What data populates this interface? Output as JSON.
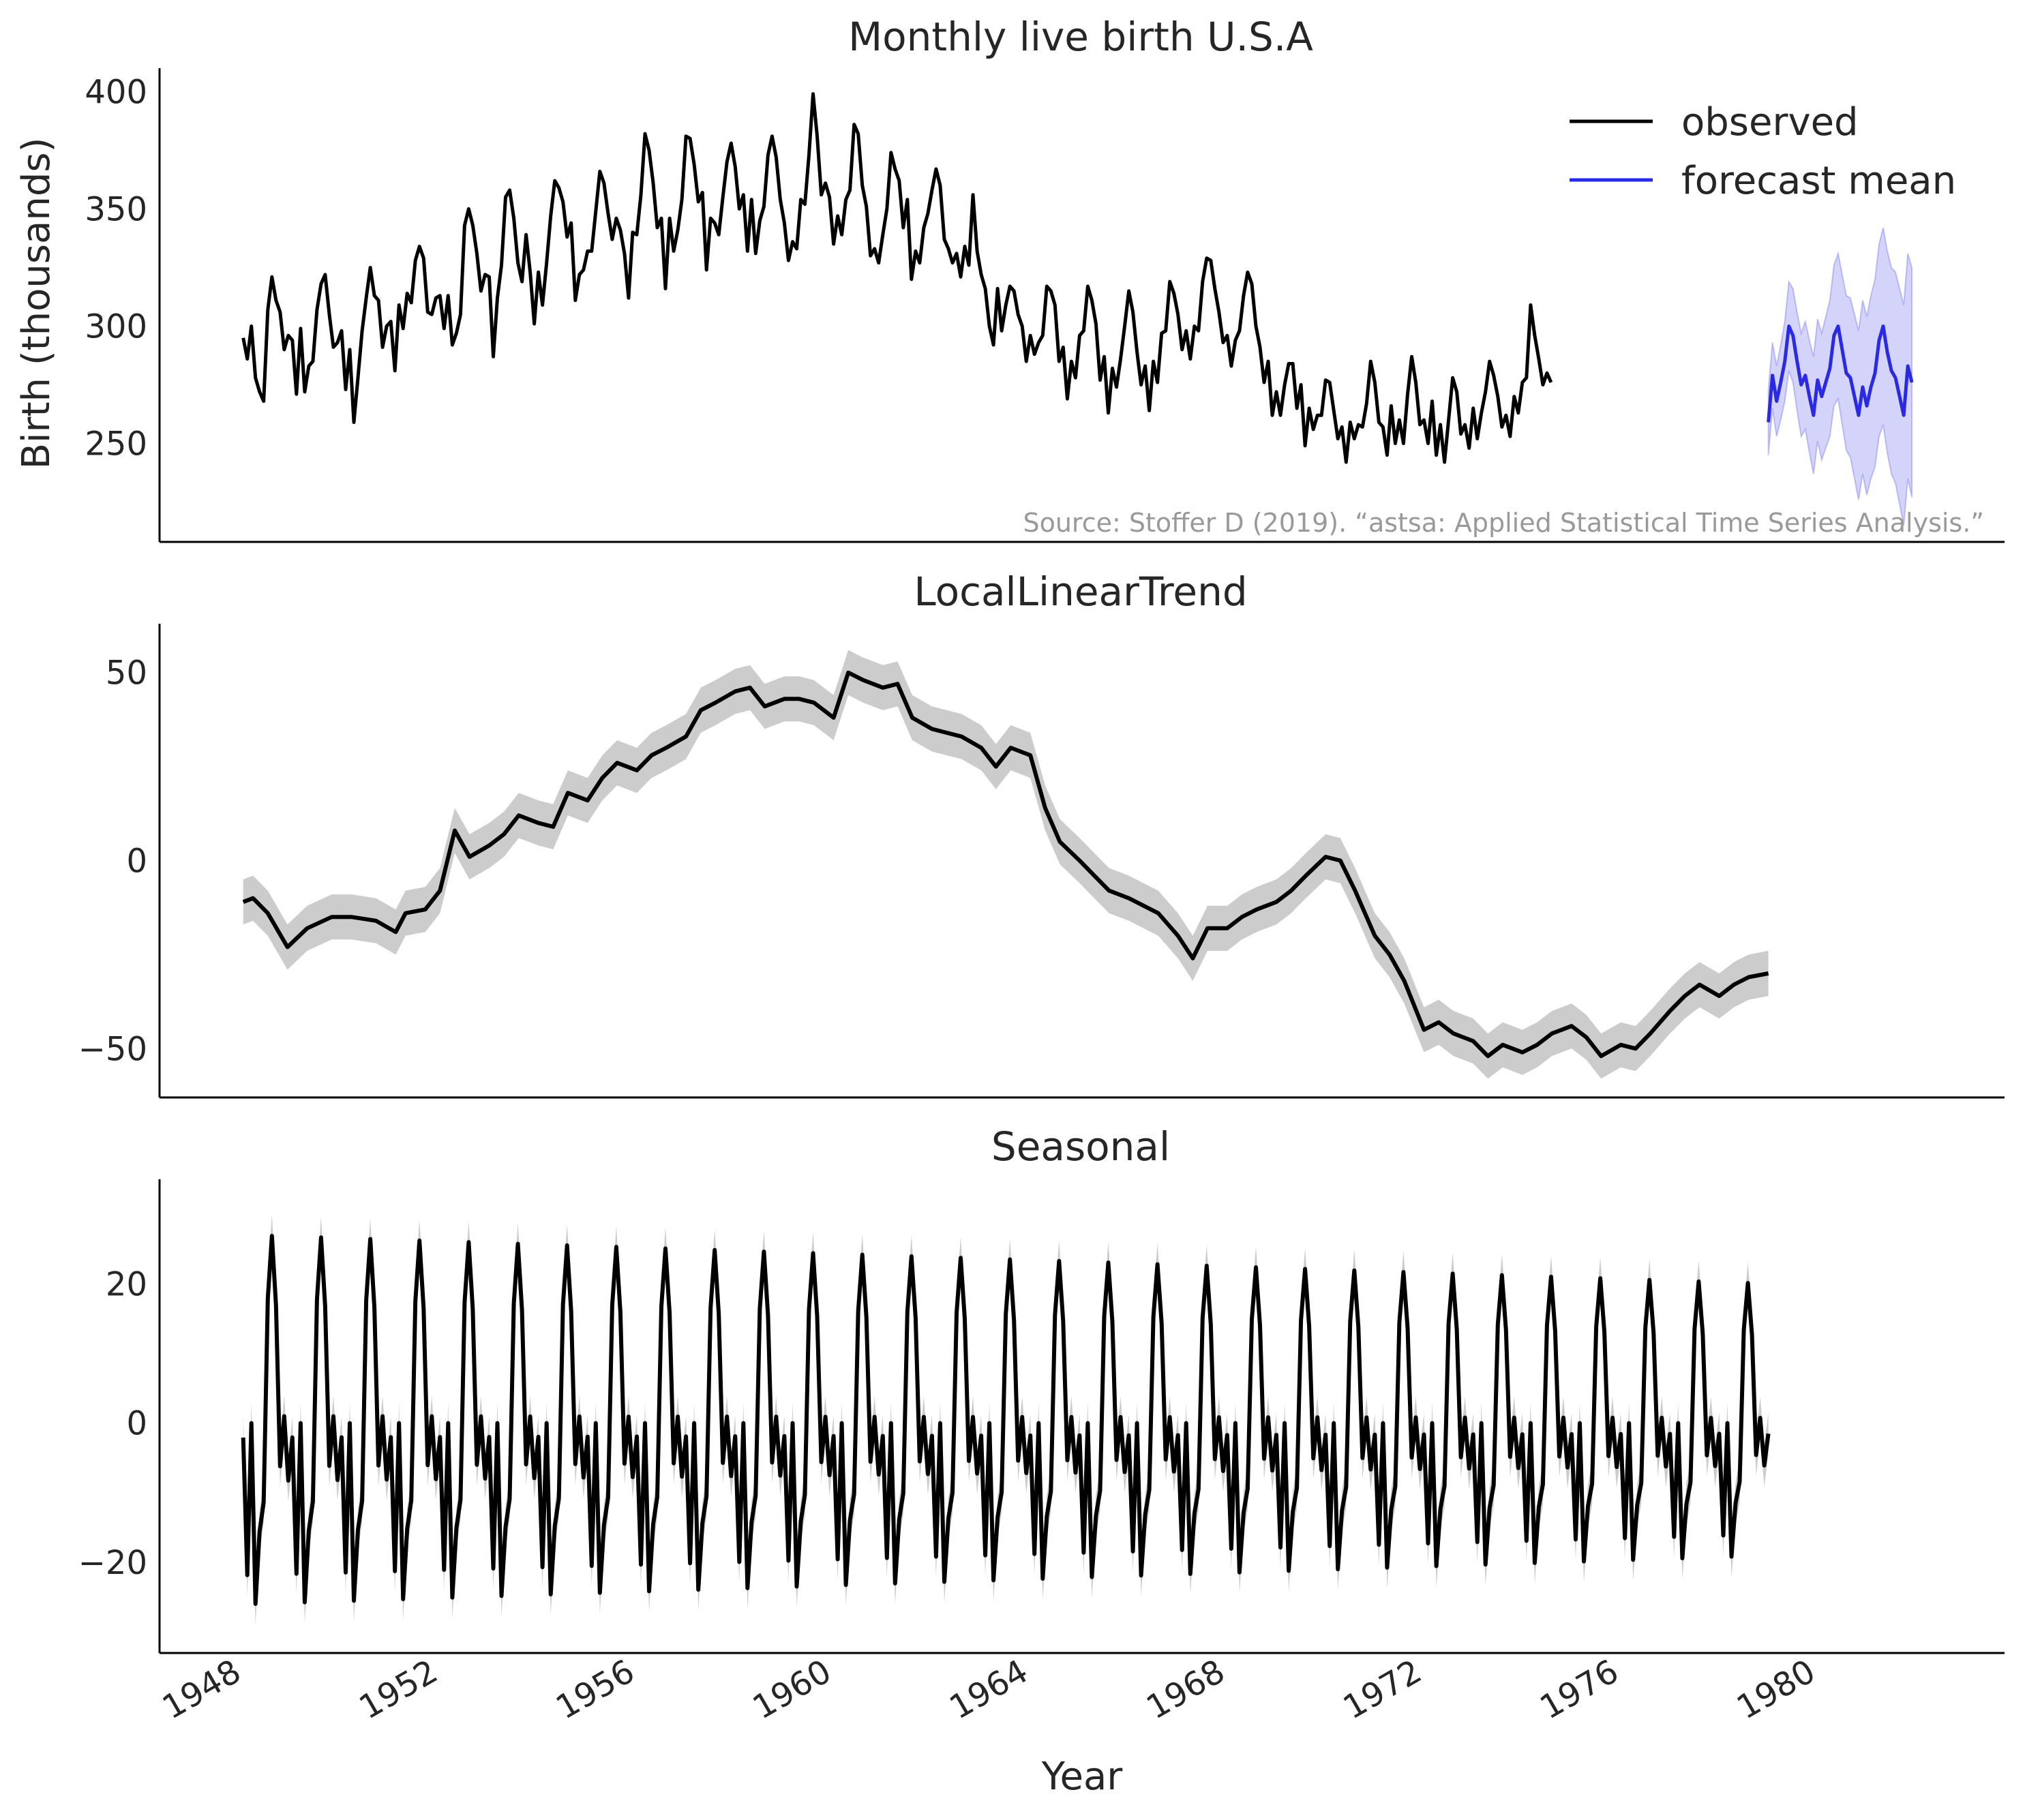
{
  "x_axis": {
    "label": "Year",
    "tick_labels": [
      "1948",
      "1952",
      "1956",
      "1960",
      "1964",
      "1968",
      "1972",
      "1976",
      "1980"
    ],
    "tick_values": [
      1948,
      1952,
      1956,
      1960,
      1964,
      1968,
      1972,
      1976,
      1980
    ],
    "range": [
      1946.3,
      1983.8
    ]
  },
  "chart_data": [
    {
      "type": "line",
      "title": "Monthly live birth U.S.A",
      "xlabel": "",
      "ylabel": "Birth (thousands)",
      "ylim": [
        208,
        410
      ],
      "yticks": [
        250,
        300,
        350,
        400
      ],
      "ytick_labels": [
        "250",
        "300",
        "350",
        "400"
      ],
      "annotation": "Source: Stoffer D (2019). “astsa: Applied Statistical Time Series Analysis.”",
      "legend": {
        "placement": "top-right",
        "entries": [
          "observed",
          "forecast mean"
        ]
      },
      "series": [
        {
          "name": "observed",
          "color": "#000000",
          "x_start": 1948.0,
          "x_step": 0.0833333,
          "values": [
            295,
            286,
            300,
            278,
            272,
            268,
            307,
            321,
            311,
            306,
            290,
            296,
            294,
            271,
            299,
            272,
            283,
            285,
            307,
            318,
            322,
            305,
            291,
            293,
            298,
            273,
            290,
            259,
            278,
            298,
            312,
            325,
            313,
            311,
            291,
            300,
            302,
            281,
            309,
            299,
            314,
            310,
            328,
            334,
            329,
            306,
            305,
            312,
            313,
            299,
            313,
            292,
            297,
            305,
            343,
            350,
            343,
            331,
            315,
            322,
            321,
            287,
            312,
            326,
            355,
            358,
            346,
            327,
            319,
            339,
            323,
            301,
            323,
            309,
            327,
            347,
            362,
            359,
            353,
            338,
            344,
            311,
            322,
            324,
            332,
            332,
            349,
            366,
            361,
            348,
            337,
            346,
            341,
            331,
            312,
            340,
            339,
            356,
            382,
            375,
            361,
            342,
            346,
            316,
            346,
            332,
            341,
            354,
            381,
            380,
            369,
            353,
            357,
            324,
            346,
            344,
            339,
            355,
            370,
            378,
            368,
            350,
            356,
            332,
            354,
            331,
            345,
            351,
            373,
            381,
            372,
            354,
            344,
            328,
            336,
            333,
            354,
            352,
            373,
            399,
            381,
            356,
            361,
            355,
            335,
            347,
            339,
            354,
            358,
            386,
            382,
            360,
            351,
            330,
            333,
            327,
            339,
            350,
            374,
            367,
            362,
            342,
            354,
            320,
            332,
            327,
            342,
            348,
            358,
            367,
            360,
            337,
            333,
            327,
            331,
            321,
            334,
            326,
            356,
            332,
            322,
            316,
            300,
            292,
            316,
            298,
            309,
            317,
            315,
            305,
            300,
            285,
            296,
            288,
            293,
            296,
            317,
            315,
            309,
            285,
            291,
            269,
            285,
            278,
            296,
            298,
            317,
            311,
            301,
            277,
            287,
            263,
            282,
            274,
            286,
            300,
            315,
            306,
            289,
            275,
            283,
            264,
            285,
            276,
            297,
            298,
            319,
            314,
            305,
            290,
            298,
            286,
            300,
            298,
            319,
            329,
            328,
            316,
            306,
            293,
            296,
            283,
            294,
            298,
            313,
            323,
            318,
            300,
            291,
            276,
            285,
            262,
            272,
            262,
            275,
            284,
            284,
            265,
            275,
            249,
            265,
            256,
            262,
            262,
            277,
            276,
            264,
            252,
            257,
            242,
            259,
            252,
            258,
            257,
            267,
            285,
            276,
            259,
            257,
            245,
            266,
            250,
            260,
            250,
            271,
            287,
            276,
            258,
            260,
            250,
            268,
            245,
            258,
            242,
            260,
            278,
            272,
            254,
            258,
            248,
            265,
            252,
            263,
            272,
            285,
            279,
            270,
            257,
            262,
            253,
            270,
            263,
            276,
            278,
            309,
            296,
            286,
            275,
            280,
            276
          ]
        },
        {
          "name": "forecast mean",
          "color": "#2a2ae6",
          "x_start": 1979.0,
          "x_step": 0.0833333,
          "values": [
            259,
            279,
            268,
            276,
            285,
            300,
            296,
            285,
            275,
            279,
            270,
            262,
            277,
            270,
            276,
            282,
            296,
            300,
            290,
            280,
            278,
            270,
            262,
            274,
            266,
            274,
            280,
            294,
            300,
            289,
            281,
            278,
            270,
            262,
            283,
            276
          ],
          "band_half_width": [
            14,
            14,
            15,
            16,
            17,
            19,
            20,
            21,
            22,
            23,
            24,
            25,
            26,
            27,
            28,
            29,
            30,
            31,
            32,
            33,
            34,
            35,
            36,
            37,
            38,
            39,
            40,
            41,
            42,
            43,
            44,
            45,
            46,
            47,
            48,
            49
          ]
        }
      ]
    },
    {
      "type": "line",
      "title": "LocalLinearTrend",
      "xlabel": "",
      "ylabel": "",
      "ylim": [
        -63,
        63
      ],
      "yticks": [
        -50,
        0,
        50
      ],
      "ytick_labels": [
        "−50",
        "0",
        "50"
      ],
      "series": [
        {
          "color": "#000000",
          "band_color": "#cccccc",
          "band_half_width": 6,
          "x": [
            1948.0,
            1948.2,
            1948.5,
            1948.9,
            1949.3,
            1949.8,
            1950.2,
            1950.7,
            1951.1,
            1951.3,
            1951.7,
            1952.0,
            1952.3,
            1952.6,
            1953.0,
            1953.3,
            1953.6,
            1954.0,
            1954.3,
            1954.6,
            1955.0,
            1955.3,
            1955.6,
            1956.0,
            1956.3,
            1956.6,
            1957.0,
            1957.3,
            1957.6,
            1958.0,
            1958.3,
            1958.6,
            1959.0,
            1959.3,
            1959.6,
            1960.0,
            1960.3,
            1960.6,
            1961.0,
            1961.3,
            1961.6,
            1962.0,
            1962.3,
            1962.6,
            1963.0,
            1963.3,
            1963.6,
            1964.0,
            1964.3,
            1964.6,
            1965.0,
            1965.3,
            1965.6,
            1966.0,
            1966.3,
            1966.6,
            1967.0,
            1967.3,
            1967.6,
            1968.0,
            1968.3,
            1968.6,
            1969.0,
            1969.3,
            1969.6,
            1970.0,
            1970.3,
            1970.6,
            1971.0,
            1971.3,
            1971.6,
            1972.0,
            1972.3,
            1972.6,
            1973.0,
            1973.3,
            1973.6,
            1974.0,
            1974.3,
            1974.6,
            1975.0,
            1975.3,
            1975.6,
            1976.0,
            1976.3,
            1976.6,
            1977.0,
            1977.3,
            1977.6,
            1978.0,
            1978.3,
            1978.6,
            1979.0
          ],
          "values": [
            -11,
            -10,
            -14,
            -23,
            -18,
            -15,
            -15,
            -16,
            -19,
            -14,
            -13,
            -8,
            8,
            1,
            4,
            7,
            12,
            10,
            9,
            18,
            16,
            22,
            26,
            24,
            28,
            30,
            33,
            40,
            42,
            45,
            46,
            41,
            43,
            43,
            42,
            38,
            50,
            48,
            46,
            47,
            38,
            35,
            34,
            33,
            30,
            25,
            30,
            28,
            14,
            5,
            0,
            -4,
            -8,
            -10,
            -12,
            -14,
            -20,
            -26,
            -18,
            -18,
            -15,
            -13,
            -11,
            -8,
            -4,
            1,
            0,
            -8,
            -20,
            -25,
            -32,
            -45,
            -43,
            -46,
            -48,
            -52,
            -49,
            -51,
            -49,
            -46,
            -44,
            -47,
            -52,
            -49,
            -50,
            -46,
            -40,
            -36,
            -33,
            -36,
            -33,
            -31,
            -30
          ]
        }
      ]
    },
    {
      "type": "line",
      "title": "Seasonal",
      "xlabel": "Year",
      "ylabel": "",
      "ylim": [
        -33,
        35
      ],
      "yticks": [
        -20,
        0,
        20
      ],
      "ytick_labels": [
        "−20",
        "0",
        "20"
      ],
      "series": [
        {
          "color": "#000000",
          "band_color": "#cccccc",
          "band_half_width": 3,
          "x_start": 1948.0,
          "x_end": 1979.0,
          "period_years": 1.0,
          "monthly_pattern": [
            -2,
            -21,
            0,
            -25,
            -15,
            -11,
            18,
            27,
            17,
            -6,
            1,
            -8
          ],
          "peak_amplitude_start": 27,
          "peak_amplitude_end": 20,
          "trough_start": -26,
          "trough_end": -19
        }
      ]
    }
  ]
}
